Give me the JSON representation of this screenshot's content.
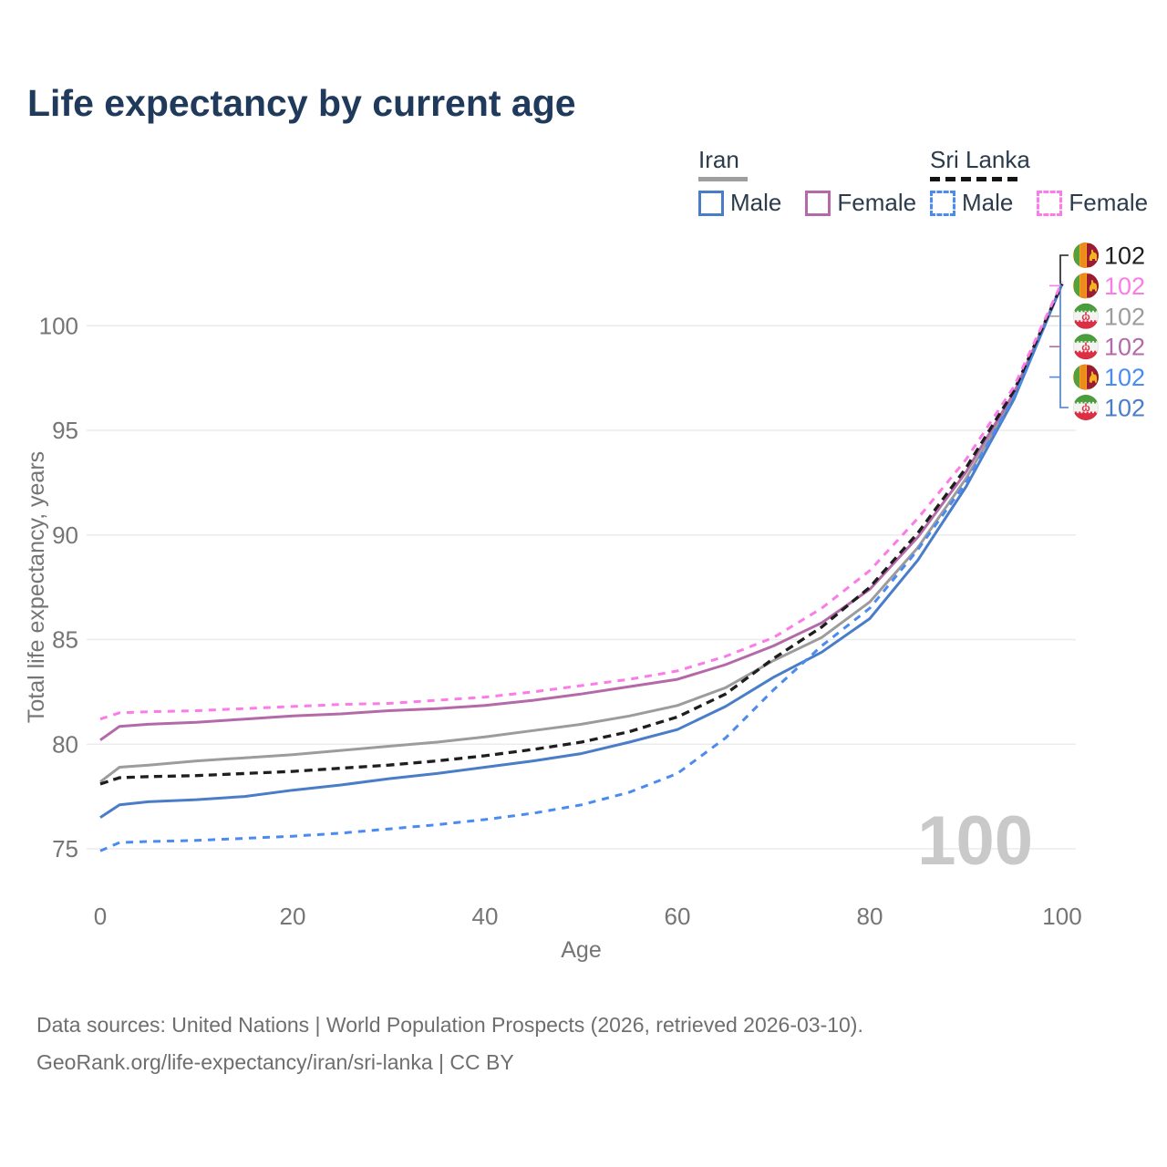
{
  "title": "Life expectancy by current age",
  "legend": {
    "groups": [
      {
        "label": "Iran",
        "line_style": "solid",
        "underline_color": "#9e9e9e",
        "items": [
          {
            "label": "Male",
            "color": "#4a7dc8",
            "dashed": false
          },
          {
            "label": "Female",
            "color": "#b46aa8",
            "dashed": false
          }
        ]
      },
      {
        "label": "Sri Lanka",
        "line_style": "dashed",
        "underline_color": "#141414",
        "items": [
          {
            "label": "Male",
            "color": "#4b8bf0",
            "dashed": true
          },
          {
            "label": "Female",
            "color": "#fb7be8",
            "dashed": true
          }
        ]
      }
    ]
  },
  "chart_data": {
    "type": "line",
    "title": "Life expectancy by current age",
    "xlabel": "Age",
    "ylabel": "Total life expectancy, years",
    "xlim": [
      0,
      100
    ],
    "ylim": [
      74,
      103
    ],
    "x_ticks": [
      0,
      20,
      40,
      60,
      80,
      100
    ],
    "y_ticks": [
      75,
      80,
      85,
      90,
      95,
      100
    ],
    "grid": true,
    "watermark": "100",
    "x": [
      0,
      2,
      5,
      10,
      15,
      20,
      25,
      30,
      35,
      40,
      45,
      50,
      55,
      60,
      65,
      70,
      75,
      80,
      85,
      90,
      95,
      100
    ],
    "series": [
      {
        "name": "Iran (total)",
        "country": "Iran",
        "color": "#9c9c9c",
        "dash": "",
        "width": 3,
        "values": [
          78.2,
          78.9,
          79.0,
          79.2,
          79.35,
          79.5,
          79.7,
          79.9,
          80.1,
          80.35,
          80.65,
          80.95,
          81.35,
          81.85,
          82.7,
          84.0,
          85.1,
          86.8,
          89.4,
          92.7,
          96.6,
          102.0
        ]
      },
      {
        "name": "Iran Female",
        "country": "Iran",
        "color": "#b46aa8",
        "dash": "",
        "width": 3,
        "values": [
          80.2,
          80.85,
          80.95,
          81.05,
          81.2,
          81.35,
          81.45,
          81.6,
          81.7,
          81.85,
          82.1,
          82.4,
          82.75,
          83.1,
          83.8,
          84.7,
          85.8,
          87.4,
          89.9,
          93.0,
          96.8,
          102.0
        ]
      },
      {
        "name": "Iran Male",
        "country": "Iran",
        "color": "#4a7dc8",
        "dash": "",
        "width": 3,
        "values": [
          76.5,
          77.1,
          77.25,
          77.35,
          77.5,
          77.8,
          78.05,
          78.35,
          78.6,
          78.9,
          79.2,
          79.55,
          80.1,
          80.7,
          81.8,
          83.2,
          84.4,
          86.0,
          88.8,
          92.3,
          96.5,
          102.0
        ]
      },
      {
        "name": "Sri Lanka Male",
        "country": "Sri Lanka",
        "color": "#4b8bf0",
        "dash": "8 7",
        "width": 3,
        "values": [
          74.9,
          75.3,
          75.35,
          75.4,
          75.5,
          75.6,
          75.75,
          75.95,
          76.15,
          76.4,
          76.7,
          77.1,
          77.7,
          78.6,
          80.3,
          82.6,
          84.7,
          86.5,
          89.3,
          92.5,
          96.6,
          102.0
        ]
      },
      {
        "name": "Sri Lanka (total)",
        "country": "Sri Lanka",
        "color": "#1e1e1e",
        "dash": "9 6",
        "width": 3.3,
        "values": [
          78.1,
          78.4,
          78.45,
          78.5,
          78.6,
          78.7,
          78.85,
          79.0,
          79.2,
          79.45,
          79.75,
          80.1,
          80.6,
          81.3,
          82.4,
          84.1,
          85.6,
          87.5,
          90.1,
          93.2,
          96.9,
          102.0
        ]
      },
      {
        "name": "Sri Lanka Female",
        "country": "Sri Lanka",
        "color": "#fb7be8",
        "dash": "8 7",
        "width": 3,
        "values": [
          81.2,
          81.5,
          81.55,
          81.6,
          81.7,
          81.8,
          81.9,
          81.95,
          82.1,
          82.25,
          82.5,
          82.8,
          83.1,
          83.5,
          84.2,
          85.1,
          86.5,
          88.3,
          90.8,
          93.6,
          97.1,
          102.1
        ]
      }
    ],
    "end_labels": [
      {
        "flag": "sri-lanka",
        "value": "102",
        "color": "#1e1e1e"
      },
      {
        "flag": "sri-lanka",
        "value": "102",
        "color": "#fb7be8"
      },
      {
        "flag": "iran",
        "value": "102",
        "color": "#9c9c9c"
      },
      {
        "flag": "iran",
        "value": "102",
        "color": "#b46aa8"
      },
      {
        "flag": "sri-lanka",
        "value": "102",
        "color": "#4b8bf0"
      },
      {
        "flag": "iran",
        "value": "102",
        "color": "#4a7dc8"
      }
    ]
  },
  "footer": {
    "line1": "Data sources: United Nations | World Population Prospects (2026, retrieved 2026-03-10).",
    "line2": "GeoRank.org/life-expectancy/iran/sri-lanka | CC BY"
  }
}
